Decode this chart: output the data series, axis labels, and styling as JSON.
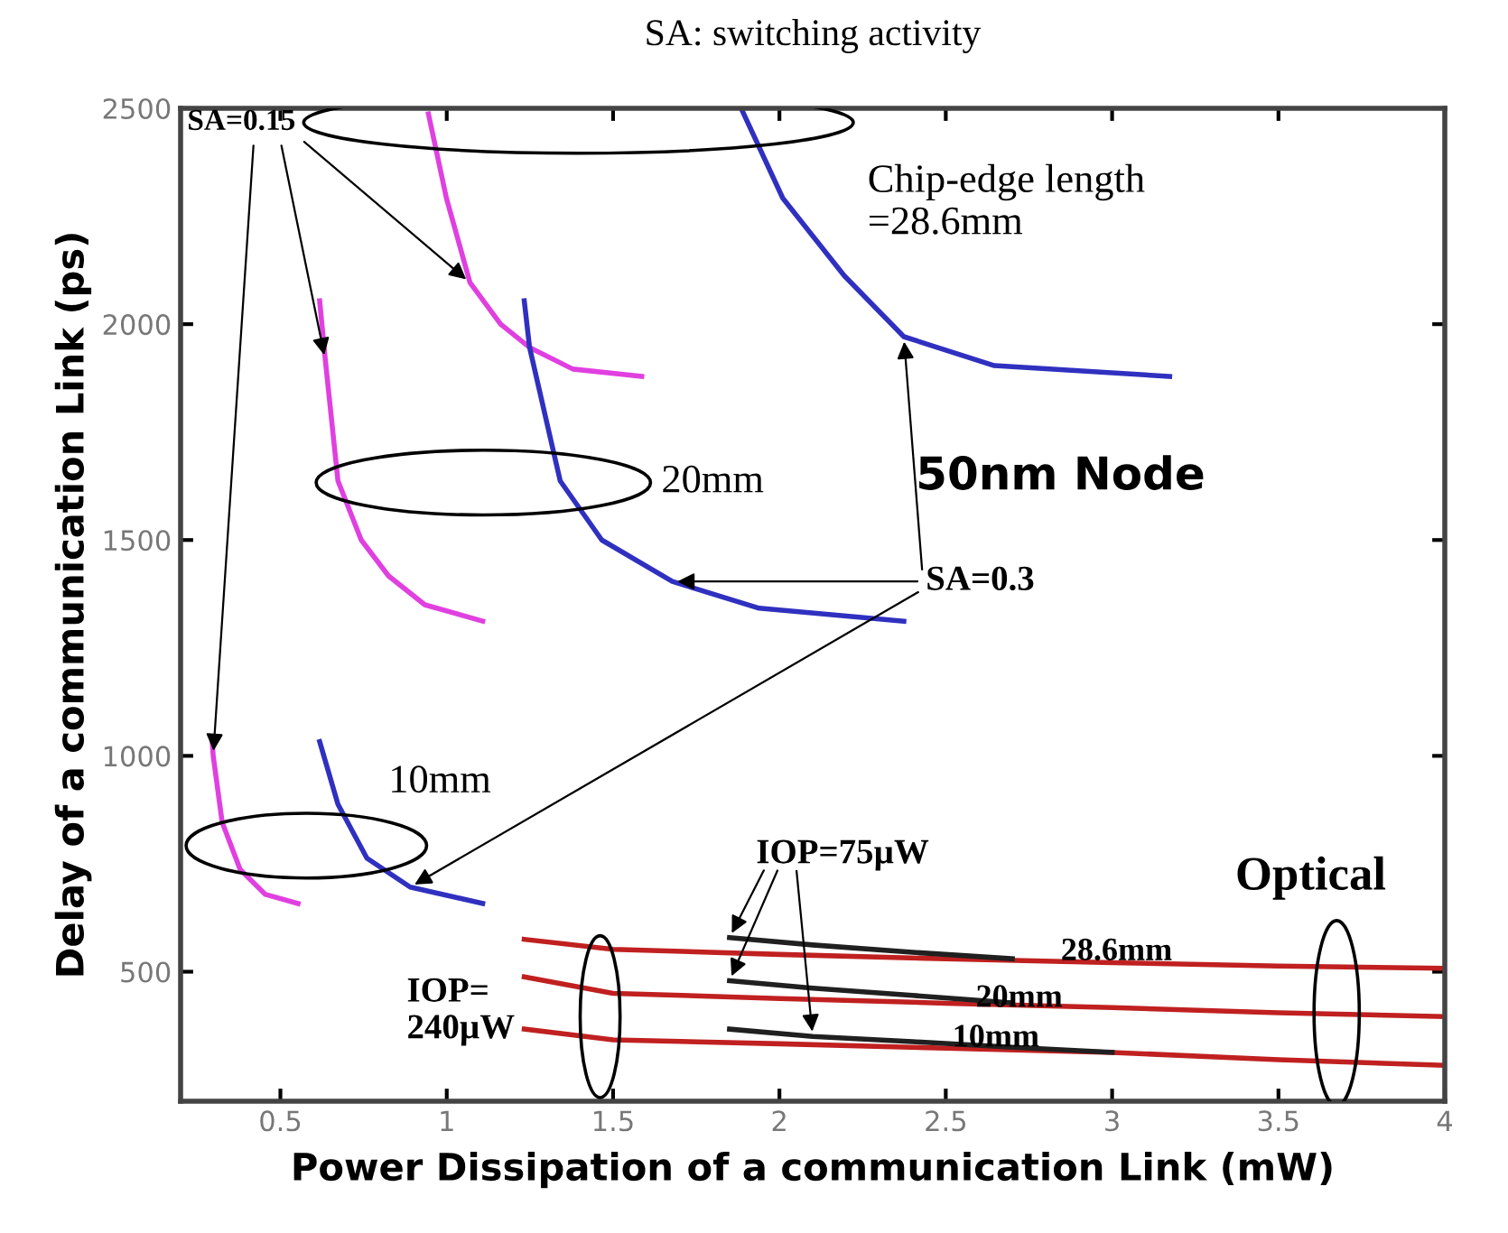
{
  "chart_data": {
    "type": "line",
    "title": "SA: switching activity",
    "xlabel": "Power Dissipation of a communication Link (mW)",
    "ylabel": "Delay of a communication Link (ps)",
    "xlim": [
      0.2,
      4
    ],
    "ylim": [
      200,
      2500
    ],
    "xticks": [
      0.5,
      1,
      1.5,
      2,
      2.5,
      3,
      3.5,
      4
    ],
    "yticks": [
      500,
      1000,
      1500,
      2000,
      2500
    ],
    "grid": false,
    "legend": false,
    "marker": "none",
    "line_style": "solid",
    "annotations": [
      {
        "text": "SA=0.15",
        "x": 1.07,
        "y": 2096
      },
      "Chip-edge length\n=28.6mm",
      "20mm",
      "10mm",
      "50nm Node",
      {
        "text": "SA=0.3",
        "x": 1.678,
        "y": 1404
      },
      {
        "text": "IOP=75µW",
        "x": 1.85,
        "y": 479
      },
      "IOP=\n240µW",
      "Optical",
      "28.6mm",
      "20mm",
      "10mm"
    ],
    "series": [
      {
        "color": "#e040e0",
        "x": [
          0.945,
          0.999,
          1.07,
          1.162,
          1.249,
          1.379,
          1.586
        ],
        "values": [
          2487,
          2292,
          2096,
          2000,
          1946,
          1896,
          1879
        ]
      },
      {
        "color": "#e040e0",
        "x": [
          0.618,
          0.635,
          0.673,
          0.743,
          0.825,
          0.934,
          1.108
        ],
        "values": [
          2054,
          1917,
          1637,
          1500,
          1417,
          1350,
          1312
        ]
      },
      {
        "color": "#e040e0",
        "x": [
          0.295,
          0.298,
          0.325,
          0.379,
          0.455,
          0.553
        ],
        "values": [
          1033,
          1000,
          846,
          737,
          679,
          658
        ]
      },
      {
        "color": "#3030c0",
        "x": [
          1.885,
          2.01,
          2.195,
          2.374,
          2.646,
          3.173
        ],
        "values": [
          2500,
          2292,
          2112,
          1971,
          1904,
          1879
        ]
      },
      {
        "color": "#3030c0",
        "x": [
          1.233,
          1.249,
          1.341,
          1.466,
          1.678,
          1.939,
          2.374
        ],
        "values": [
          2054,
          1946,
          1637,
          1500,
          1404,
          1342,
          1312
        ]
      },
      {
        "color": "#3030c0",
        "x": [
          0.618,
          0.673,
          0.76,
          0.89,
          1.108
        ],
        "values": [
          1033,
          888,
          763,
          696,
          658
        ]
      },
      {
        "color": "#c02020",
        "x": [
          1.233,
          1.5,
          2,
          2.5,
          3,
          3.5,
          4
        ],
        "values": [
          575,
          552,
          540,
          530,
          521,
          513,
          508
        ]
      },
      {
        "color": "#c02020",
        "x": [
          1.233,
          1.5,
          2,
          2.5,
          3,
          3.5,
          4
        ],
        "values": [
          488,
          450,
          438,
          427,
          417,
          405,
          396
        ]
      },
      {
        "color": "#c02020",
        "x": [
          1.233,
          1.5,
          2,
          2.5,
          3,
          3.5,
          4
        ],
        "values": [
          367,
          342,
          333,
          323,
          313,
          296,
          283
        ]
      },
      {
        "color": "#202020",
        "x": [
          1.85,
          2.1,
          2.4,
          2.7
        ],
        "values": [
          579,
          562,
          545,
          530
        ]
      },
      {
        "color": "#202020",
        "x": [
          1.85,
          2.1,
          2.4,
          2.7
        ],
        "values": [
          479,
          462,
          445,
          428
        ]
      },
      {
        "color": "#202020",
        "x": [
          1.85,
          2.1,
          2.4,
          2.7,
          3.0
        ],
        "values": [
          367,
          350,
          338,
          325,
          313
        ]
      }
    ]
  }
}
